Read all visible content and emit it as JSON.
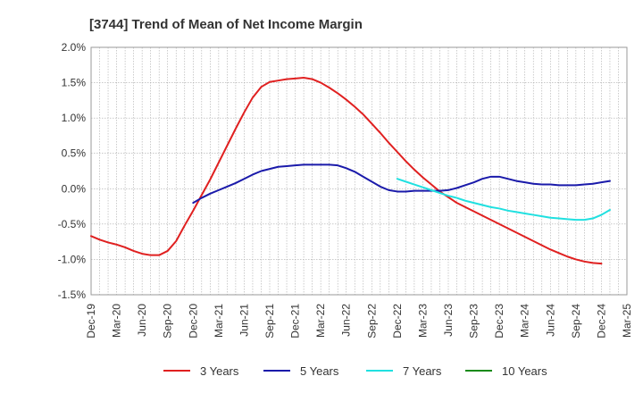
{
  "chart_data": {
    "type": "line",
    "title": "[3744]  Trend of Mean of Net Income Margin",
    "xlabel": "",
    "ylabel": "",
    "ylim": [
      -1.5,
      2.0
    ],
    "yticks": [
      "2.0%",
      "1.5%",
      "1.0%",
      "0.5%",
      "0.0%",
      "-0.5%",
      "-1.0%",
      "-1.5%"
    ],
    "ytick_values": [
      2.0,
      1.5,
      1.0,
      0.5,
      0.0,
      -0.5,
      -1.0,
      -1.5
    ],
    "xticks": [
      "Dec-19",
      "Mar-20",
      "Jun-20",
      "Sep-20",
      "Dec-20",
      "Mar-21",
      "Jun-21",
      "Sep-21",
      "Dec-21",
      "Mar-22",
      "Jun-22",
      "Sep-22",
      "Dec-22",
      "Mar-23",
      "Jun-23",
      "Sep-23",
      "Dec-23",
      "Mar-24",
      "Jun-24",
      "Sep-24",
      "Dec-24",
      "Mar-25"
    ],
    "grid": true,
    "legend_position": "bottom",
    "series": [
      {
        "name": "3 Years",
        "color": "#e02020",
        "x_start_index": 0,
        "values": [
          -0.67,
          -0.72,
          -0.76,
          -0.79,
          -0.83,
          -0.88,
          -0.92,
          -0.94,
          -0.94,
          -0.88,
          -0.74,
          -0.52,
          -0.31,
          -0.09,
          0.13,
          0.37,
          0.61,
          0.85,
          1.08,
          1.29,
          1.44,
          1.51,
          1.53,
          1.55,
          1.56,
          1.57,
          1.55,
          1.5,
          1.43,
          1.35,
          1.26,
          1.16,
          1.05,
          0.92,
          0.79,
          0.65,
          0.52,
          0.39,
          0.27,
          0.16,
          0.06,
          -0.04,
          -0.12,
          -0.2,
          -0.26,
          -0.32,
          -0.38,
          -0.44,
          -0.5,
          -0.56,
          -0.62,
          -0.68,
          -0.74,
          -0.8,
          -0.86,
          -0.91,
          -0.96,
          -1.0,
          -1.03,
          -1.05,
          -1.06
        ]
      },
      {
        "name": "5 Years",
        "color": "#1a1aaa",
        "x_start_index": 12,
        "values": [
          -0.2,
          -0.13,
          -0.07,
          -0.02,
          0.03,
          0.08,
          0.14,
          0.2,
          0.25,
          0.28,
          0.31,
          0.32,
          0.33,
          0.34,
          0.34,
          0.34,
          0.34,
          0.33,
          0.29,
          0.24,
          0.17,
          0.1,
          0.03,
          -0.02,
          -0.04,
          -0.04,
          -0.03,
          -0.03,
          -0.03,
          -0.03,
          -0.02,
          0.01,
          0.05,
          0.09,
          0.14,
          0.17,
          0.17,
          0.14,
          0.11,
          0.09,
          0.07,
          0.06,
          0.06,
          0.05,
          0.05,
          0.05,
          0.06,
          0.07,
          0.09,
          0.11
        ]
      },
      {
        "name": "7 Years",
        "color": "#20e0e0",
        "x_start_index": 36,
        "values": [
          0.14,
          0.1,
          0.06,
          0.02,
          -0.02,
          -0.06,
          -0.1,
          -0.13,
          -0.17,
          -0.2,
          -0.23,
          -0.26,
          -0.28,
          -0.31,
          -0.33,
          -0.35,
          -0.37,
          -0.39,
          -0.41,
          -0.42,
          -0.43,
          -0.44,
          -0.44,
          -0.42,
          -0.37,
          -0.3
        ]
      },
      {
        "name": "10 Years",
        "color": "#1a8a1a",
        "x_start_index": 0,
        "values": []
      }
    ]
  }
}
